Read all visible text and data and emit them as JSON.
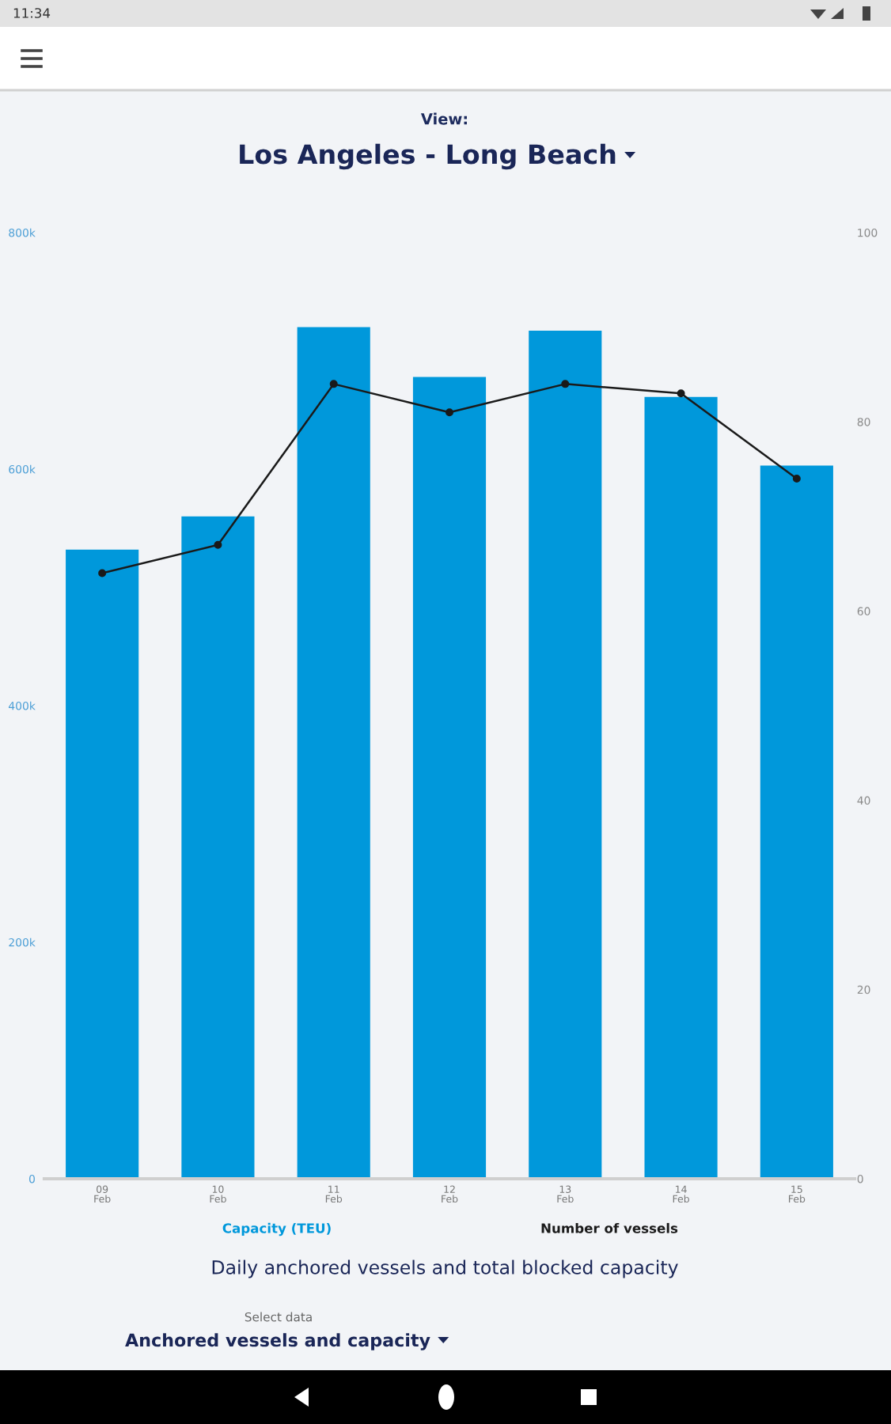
{
  "chart_data": {
    "type": "bar",
    "title": "Daily anchored vessels and total blocked capacity",
    "subtitle": "Los Angeles - Long Beach",
    "annotations": [
      "View:",
      "Select data",
      "Anchored vessels and capacity",
      "11:34"
    ],
    "categories": [
      "09\nFeb",
      "10\nFeb",
      "11\nFeb",
      "12\nFeb",
      "13\nFeb",
      "14\nFeb",
      "15\nFeb"
    ],
    "series": [
      {
        "name": "Capacity (TEU)",
        "color": "#0098db",
        "values": [
          532000,
          560000,
          720000,
          678000,
          717000,
          661000,
          603000
        ]
      },
      {
        "name": "Number of vessels",
        "type": "line",
        "axis": "y2",
        "color": "#1a1a1a",
        "values": [
          64,
          67,
          84,
          81,
          84,
          83,
          74
        ]
      }
    ],
    "ylim": [
      0,
      800000
    ],
    "yticks": [
      0,
      {
        "value": 200000,
        "label": "200k"
      },
      {
        "value": 400000,
        "label": "400k"
      },
      {
        "value": 600000,
        "label": "600k"
      },
      {
        "value": 800000,
        "label": "800k"
      }
    ],
    "y2lim": [
      0,
      100
    ],
    "y2ticks": [
      0,
      20,
      40,
      60,
      80,
      100
    ],
    "legend": "bottom",
    "marker": "circle",
    "line_style": "solid"
  }
}
